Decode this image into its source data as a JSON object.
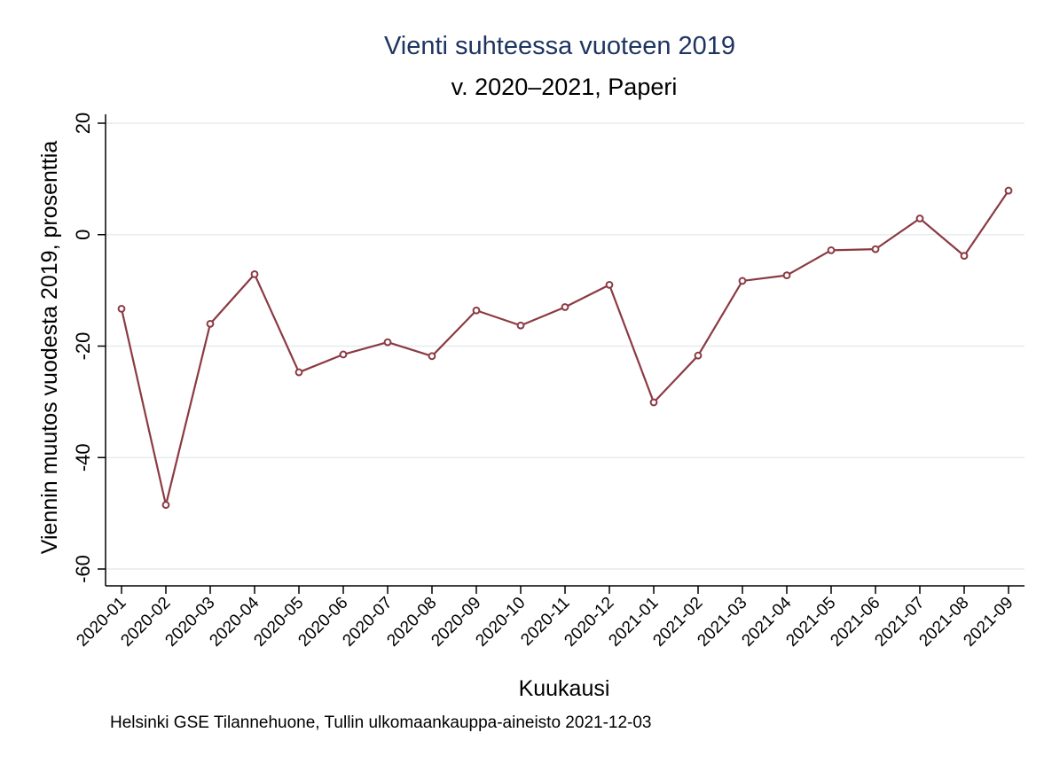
{
  "chart_data": {
    "type": "line",
    "title": "Vienti suhteessa vuoteen 2019",
    "subtitle": "v. 2020–2021, Paperi",
    "xlabel": "Kuukausi",
    "ylabel": "Viennin muutos vuodesta 2019, prosenttia",
    "note": "Helsinki GSE Tilannehuone, Tullin ulkomaankauppa-aineisto 2021-12-03",
    "ylim": [
      -60,
      20
    ],
    "yticks": [
      20,
      0,
      -20,
      -40,
      -60
    ],
    "grid": true,
    "line_color": "#8b3a43",
    "categories": [
      "2020-01",
      "2020-02",
      "2020-03",
      "2020-04",
      "2020-05",
      "2020-06",
      "2020-07",
      "2020-08",
      "2020-09",
      "2020-10",
      "2020-11",
      "2020-12",
      "2021-01",
      "2021-02",
      "2021-03",
      "2021-04",
      "2021-05",
      "2021-06",
      "2021-07",
      "2021-08",
      "2021-09"
    ],
    "values": [
      -13.3,
      -48.5,
      -16,
      -7.1,
      -24.7,
      -21.5,
      -19.3,
      -21.8,
      -13.6,
      -16.3,
      -13,
      -9,
      -30.1,
      -21.7,
      -8.3,
      -7.3,
      -2.8,
      -2.6,
      2.9,
      -3.8,
      7.9
    ]
  }
}
